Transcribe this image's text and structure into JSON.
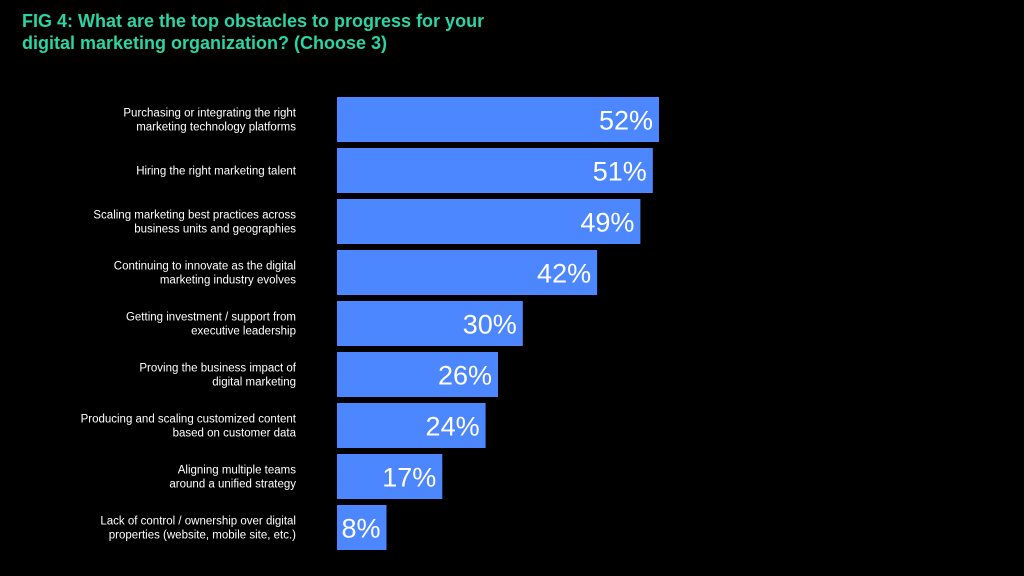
{
  "title": {
    "line1": "FIG 4: What are the top obstacles to progress for your",
    "line2": "digital marketing organization? (Choose 3)"
  },
  "colors": {
    "background": "#000000",
    "title": "#2ad4a4",
    "bar": "#4d87ff",
    "text": "#ffffff"
  },
  "chart_data": {
    "type": "bar",
    "orientation": "horizontal",
    "categories": [
      [
        "Purchasing or integrating the right",
        "marketing technology platforms"
      ],
      [
        "Hiring the right marketing talent"
      ],
      [
        "Scaling marketing best practices across",
        "business units and geographies"
      ],
      [
        "Continuing to innovate as the digital",
        "marketing industry evolves"
      ],
      [
        "Getting investment / support from",
        "executive leadership"
      ],
      [
        "Proving the business impact of",
        "digital marketing"
      ],
      [
        "Producing and scaling customized content",
        "based on customer data"
      ],
      [
        "Aligning multiple teams",
        "around a unified strategy"
      ],
      [
        "Lack of control / ownership over digital",
        "properties (website, mobile site, etc.)"
      ]
    ],
    "values": [
      52,
      51,
      49,
      42,
      30,
      26,
      24,
      17,
      8
    ],
    "value_labels": [
      "52%",
      "51%",
      "49%",
      "42%",
      "30%",
      "26%",
      "24%",
      "17%",
      "8%"
    ],
    "unit": "%",
    "xlim": [
      0,
      52
    ],
    "grid": false,
    "legend": "none"
  }
}
